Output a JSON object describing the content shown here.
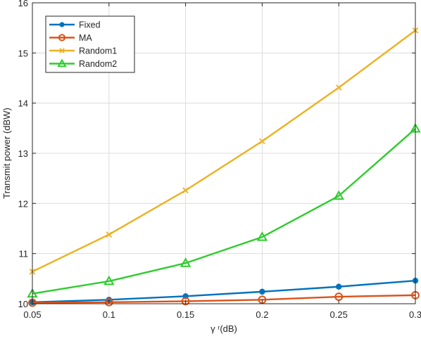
{
  "chart_data": {
    "type": "line",
    "title": "",
    "xlabel": "γ ʳ(dB)",
    "ylabel": "Transmit power (dBW)",
    "xlim": [
      0.05,
      0.3
    ],
    "ylim": [
      10,
      16
    ],
    "grid": true,
    "legend_position": "top-left",
    "x": [
      0.05,
      0.1,
      0.15,
      0.2,
      0.25,
      0.3
    ],
    "xtick_labels": [
      "0.05",
      "0.1",
      "0.15",
      "0.2",
      "0.25",
      "0.3"
    ],
    "ytick_values": [
      10,
      11,
      12,
      13,
      14,
      15,
      16
    ],
    "ytick_labels": [
      "10",
      "11",
      "12",
      "13",
      "14",
      "15",
      "16"
    ],
    "series": [
      {
        "name": "Fixed",
        "color": "#0072BD",
        "marker": "filled-circle",
        "values": [
          10.03,
          10.08,
          10.15,
          10.24,
          10.34,
          10.46
        ]
      },
      {
        "name": "MA",
        "color": "#D95319",
        "marker": "open-circle",
        "values": [
          10.02,
          10.03,
          10.05,
          10.08,
          10.14,
          10.17
        ]
      },
      {
        "name": "Random1",
        "color": "#EDB120",
        "marker": "x-cross",
        "values": [
          10.64,
          11.38,
          12.26,
          13.24,
          14.31,
          15.45
        ]
      },
      {
        "name": "Random2",
        "color": "#2ECC2E",
        "marker": "triangle",
        "values": [
          10.2,
          10.45,
          10.81,
          11.33,
          12.15,
          13.49
        ]
      }
    ]
  }
}
